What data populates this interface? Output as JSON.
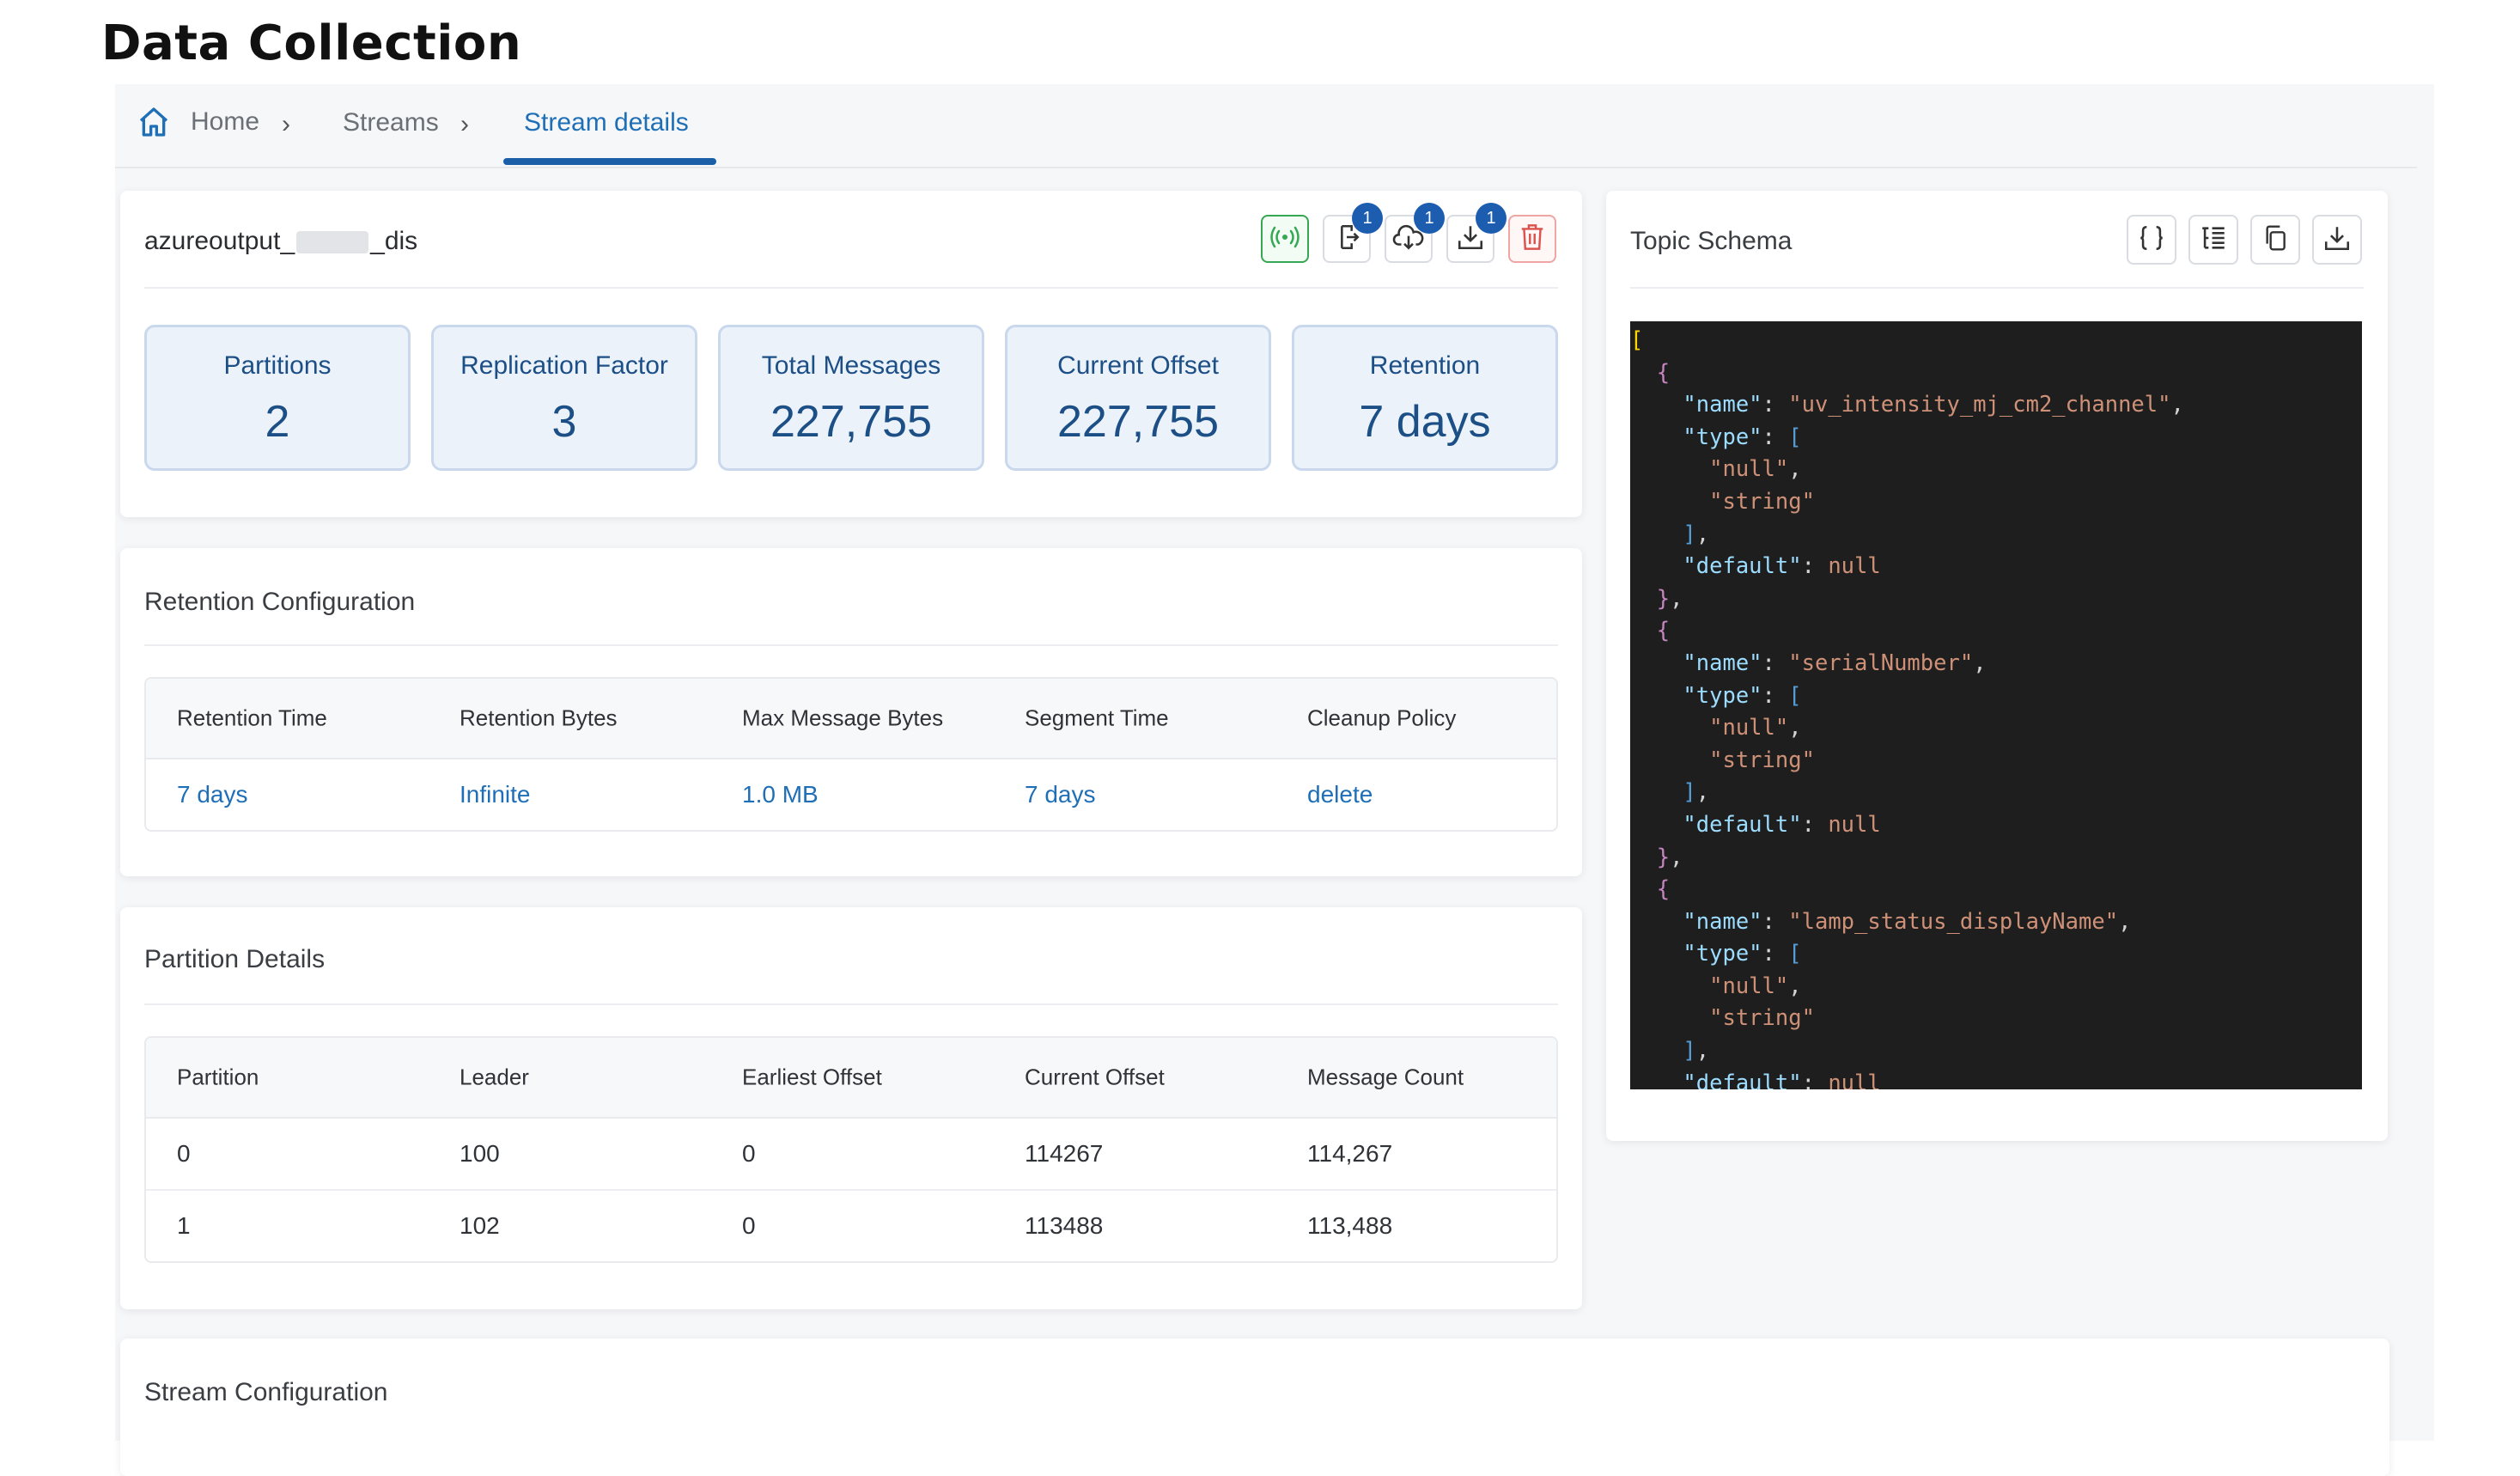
{
  "page_title": "Data Collection",
  "breadcrumb": {
    "home": "Home",
    "streams": "Streams",
    "current": "Stream details",
    "separator": "›"
  },
  "stream": {
    "name_prefix": "azureoutput_",
    "name_suffix": "_dis",
    "actions": [
      {
        "name": "live-stream",
        "badge": ""
      },
      {
        "name": "export",
        "badge": "1"
      },
      {
        "name": "cloud-download",
        "badge": "1"
      },
      {
        "name": "download",
        "badge": "1"
      },
      {
        "name": "delete",
        "badge": ""
      }
    ],
    "stats": [
      {
        "label": "Partitions",
        "value": "2"
      },
      {
        "label": "Replication Factor",
        "value": "3"
      },
      {
        "label": "Total Messages",
        "value": "227,755"
      },
      {
        "label": "Current Offset",
        "value": "227,755"
      },
      {
        "label": "Retention",
        "value": "7 days"
      }
    ]
  },
  "retention": {
    "title": "Retention Configuration",
    "headers": [
      "Retention Time",
      "Retention Bytes",
      "Max Message Bytes",
      "Segment Time",
      "Cleanup Policy"
    ],
    "values": [
      "7 days",
      "Infinite",
      "1.0 MB",
      "7 days",
      "delete"
    ]
  },
  "partitions": {
    "title": "Partition Details",
    "headers": [
      "Partition",
      "Leader",
      "Earliest Offset",
      "Current Offset",
      "Message Count"
    ],
    "rows": [
      [
        "0",
        "100",
        "0",
        "114267",
        "114,267"
      ],
      [
        "1",
        "102",
        "0",
        "113488",
        "113,488"
      ]
    ]
  },
  "stream_config": {
    "title": "Stream Configuration"
  },
  "schema": {
    "title": "Topic Schema",
    "fields": [
      {
        "name": "uv_intensity_mj_cm2_channel",
        "types": [
          "null",
          "string"
        ],
        "default": "null"
      },
      {
        "name": "serialNumber",
        "types": [
          "null",
          "string"
        ],
        "default": "null"
      },
      {
        "name": "lamp_status_displayName",
        "types": [
          "null",
          "string"
        ],
        "default": "null"
      }
    ],
    "key_name": "\"name\"",
    "key_type": "\"type\"",
    "key_default": "\"default\""
  },
  "colors": {
    "accent": "#1f6fb7",
    "stat_bg": "#ecf2fa",
    "badge": "#1d5db0",
    "code_bg": "#1e1e1e"
  }
}
